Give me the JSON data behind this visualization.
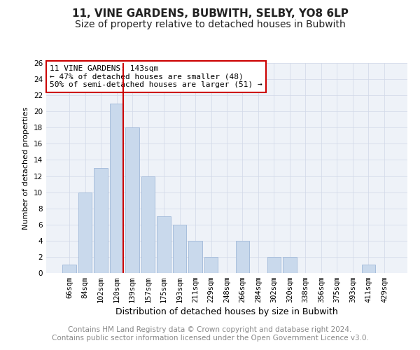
{
  "title": "11, VINE GARDENS, BUBWITH, SELBY, YO8 6LP",
  "subtitle": "Size of property relative to detached houses in Bubwith",
  "xlabel": "Distribution of detached houses by size in Bubwith",
  "ylabel": "Number of detached properties",
  "categories": [
    "66sqm",
    "84sqm",
    "102sqm",
    "120sqm",
    "139sqm",
    "157sqm",
    "175sqm",
    "193sqm",
    "211sqm",
    "229sqm",
    "248sqm",
    "266sqm",
    "284sqm",
    "302sqm",
    "320sqm",
    "338sqm",
    "356sqm",
    "375sqm",
    "393sqm",
    "411sqm",
    "429sqm"
  ],
  "values": [
    1,
    10,
    13,
    21,
    18,
    12,
    7,
    6,
    4,
    2,
    0,
    4,
    0,
    2,
    2,
    0,
    0,
    0,
    0,
    1,
    0
  ],
  "bar_color": "#c9d9ec",
  "bar_edge_color": "#a0b8d8",
  "vline_color": "#cc0000",
  "annotation_text": "11 VINE GARDENS: 143sqm\n← 47% of detached houses are smaller (48)\n50% of semi-detached houses are larger (51) →",
  "annotation_box_color": "#ffffff",
  "annotation_box_edge_color": "#cc0000",
  "ylim": [
    0,
    26
  ],
  "yticks": [
    0,
    2,
    4,
    6,
    8,
    10,
    12,
    14,
    16,
    18,
    20,
    22,
    24,
    26
  ],
  "footer_text": "Contains HM Land Registry data © Crown copyright and database right 2024.\nContains public sector information licensed under the Open Government Licence v3.0.",
  "grid_color": "#d0d8e8",
  "background_color": "#eef2f8",
  "title_fontsize": 11,
  "subtitle_fontsize": 10,
  "footer_fontsize": 7.5,
  "tick_fontsize": 7.5,
  "ylabel_fontsize": 8,
  "xlabel_fontsize": 9,
  "annotation_fontsize": 8
}
